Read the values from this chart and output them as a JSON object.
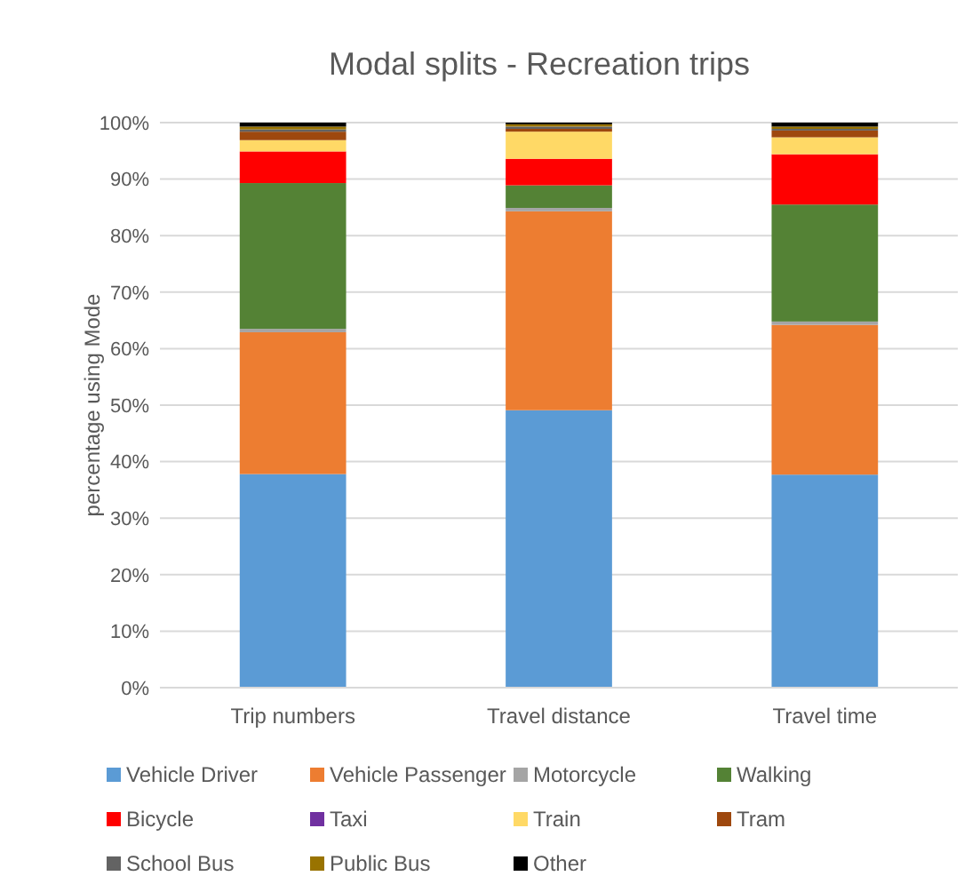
{
  "chart_data": {
    "type": "bar",
    "stacked": true,
    "title": "Modal splits - Recreation trips",
    "ylabel": "percentage using Mode",
    "categories": [
      "Trip numbers",
      "Travel distance",
      "Travel time"
    ],
    "series": [
      {
        "name": "Vehicle Driver",
        "color": "#5b9bd5",
        "values": [
          37.8,
          49.1,
          37.7
        ]
      },
      {
        "name": "Vehicle Passenger",
        "color": "#ed7d31",
        "values": [
          25.1,
          35.2,
          26.5
        ]
      },
      {
        "name": "Motorcycle",
        "color": "#a5a5a5",
        "values": [
          0.6,
          0.6,
          0.6
        ]
      },
      {
        "name": "Walking",
        "color": "#548235",
        "values": [
          25.8,
          4.0,
          20.7
        ]
      },
      {
        "name": "Bicycle",
        "color": "#ff0000",
        "values": [
          5.6,
          4.7,
          8.9
        ]
      },
      {
        "name": "Taxi",
        "color": "#7030a0",
        "values": [
          null,
          null,
          null
        ]
      },
      {
        "name": "Train",
        "color": "#ffd966",
        "values": [
          2.0,
          4.8,
          3.0
        ]
      },
      {
        "name": "Tram",
        "color": "#9e480e",
        "values": [
          1.5,
          0.5,
          1.2
        ]
      },
      {
        "name": "School Bus",
        "color": "#636363",
        "values": [
          0.4,
          0.4,
          0.3
        ]
      },
      {
        "name": "Public Bus",
        "color": "#997300",
        "values": [
          0.5,
          0.4,
          0.4
        ]
      },
      {
        "name": "Other",
        "color": "#000000",
        "values": [
          0.7,
          0.3,
          0.7
        ]
      }
    ],
    "ylim": [
      0,
      100
    ],
    "yticks": [
      {
        "value": 0,
        "label": "0%"
      },
      {
        "value": 10,
        "label": "10%"
      },
      {
        "value": 20,
        "label": "20%"
      },
      {
        "value": 30,
        "label": "30%"
      },
      {
        "value": 40,
        "label": "40%"
      },
      {
        "value": 50,
        "label": "50%"
      },
      {
        "value": 60,
        "label": "60%"
      },
      {
        "value": 70,
        "label": "70%"
      },
      {
        "value": 80,
        "label": "80%"
      },
      {
        "value": 90,
        "label": "90%"
      },
      {
        "value": 100,
        "label": "100%"
      }
    ],
    "grid": "y",
    "legend": "bottom"
  }
}
